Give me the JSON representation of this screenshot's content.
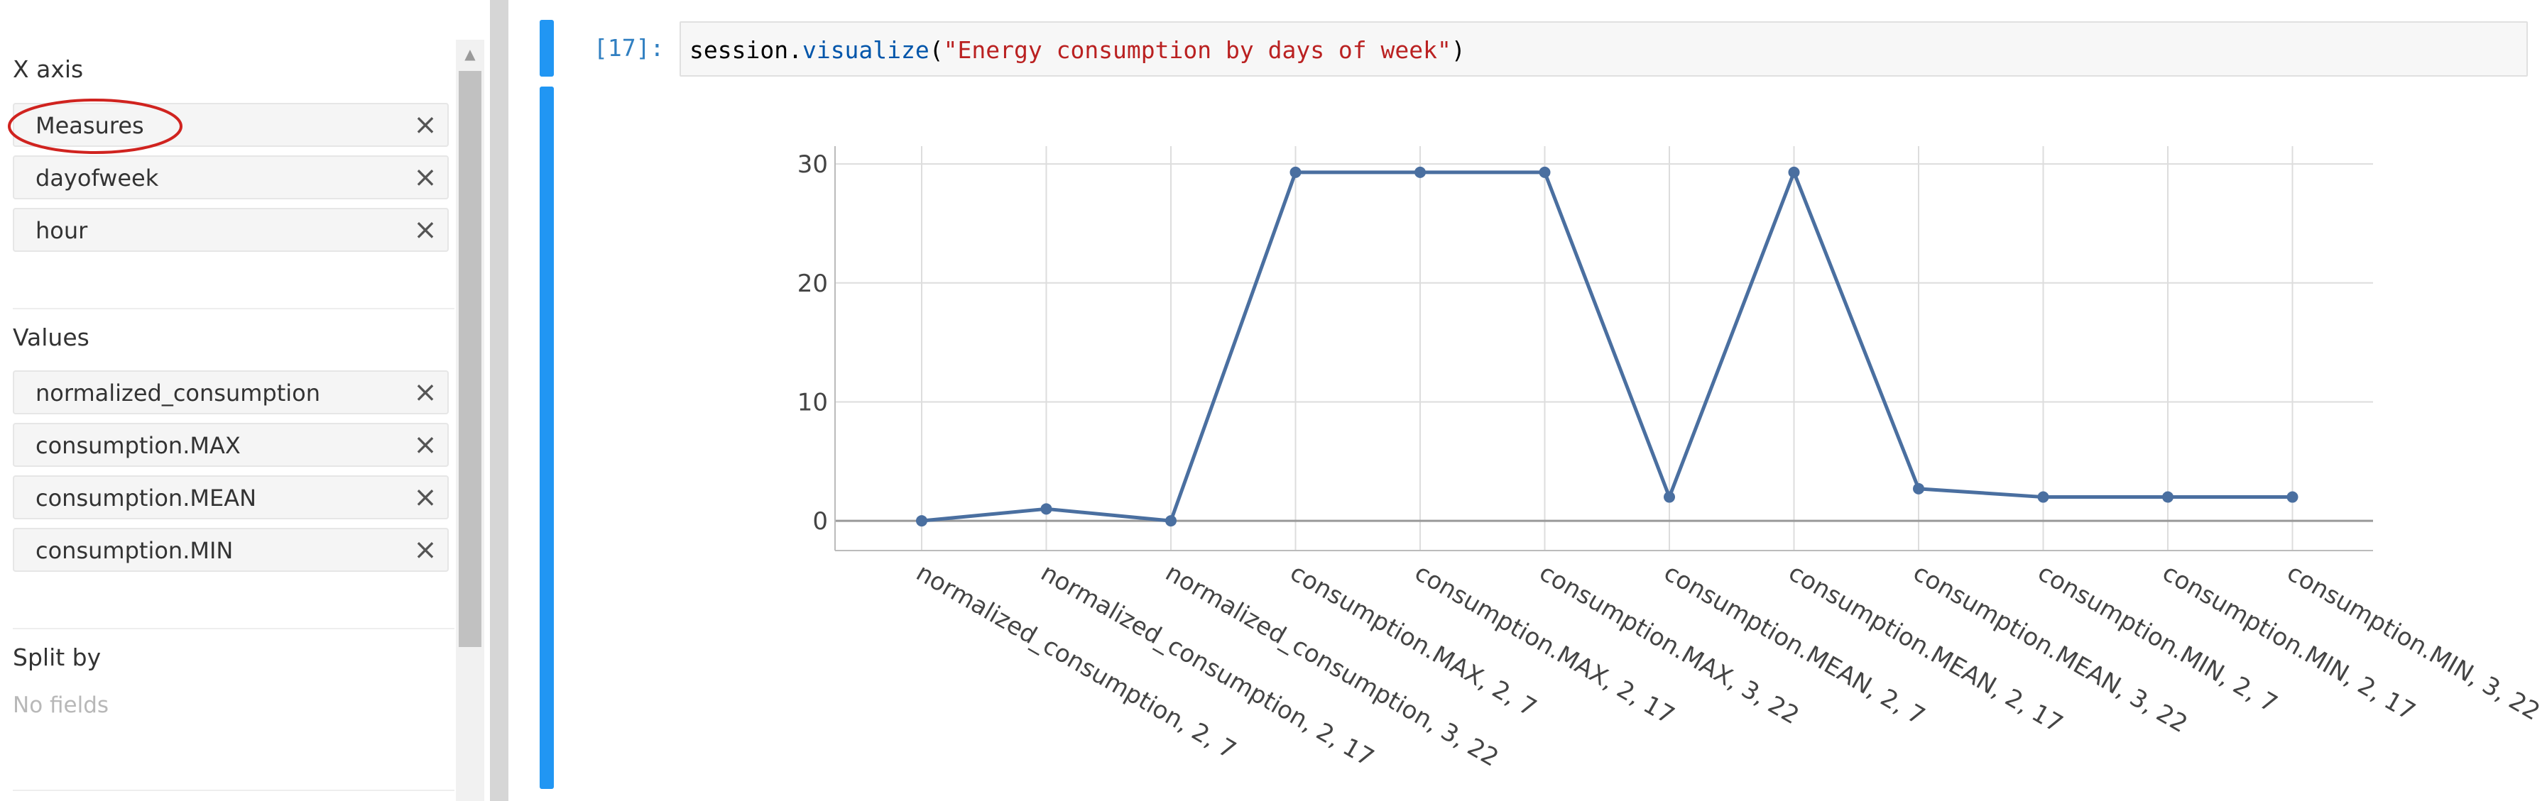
{
  "sidebar": {
    "x_axis": {
      "title": "X axis",
      "fields": [
        "Measures",
        "dayofweek",
        "hour"
      ]
    },
    "values": {
      "title": "Values",
      "fields": [
        "normalized_consumption",
        "consumption.MAX",
        "consumption.MEAN",
        "consumption.MIN"
      ]
    },
    "split_by": {
      "title": "Split by",
      "empty_text": "No fields"
    },
    "remove_icon": "close-icon",
    "highlight_color": "#d0231f"
  },
  "cell": {
    "prompt": "[17]:",
    "code": {
      "object": "session",
      "dot": ".",
      "method": "visualize",
      "open_paren": "(",
      "argument": "\"Energy consumption by days of week\"",
      "close_paren": ")"
    },
    "accent_color": "#2196f3"
  },
  "chart_data": {
    "type": "line",
    "categories": [
      "normalized_consumption, 2, 7",
      "normalized_consumption, 2, 17",
      "normalized_consumption, 3, 22",
      "consumption.MAX, 2, 7",
      "consumption.MAX, 2, 17",
      "consumption.MAX, 3, 22",
      "consumption.MEAN, 2, 7",
      "consumption.MEAN, 2, 17",
      "consumption.MEAN, 3, 22",
      "consumption.MIN, 2, 7",
      "consumption.MIN, 2, 17",
      "consumption.MIN, 3, 22"
    ],
    "values": [
      0,
      1,
      0,
      29.3,
      29.3,
      29.3,
      2,
      29.3,
      2.7,
      2,
      2,
      2
    ],
    "yticks": [
      0,
      10,
      20,
      30
    ],
    "ylim": [
      -2.5,
      31.5
    ],
    "grid": true,
    "line_color": "#4a6fa0",
    "xlabel": "",
    "ylabel": ""
  }
}
